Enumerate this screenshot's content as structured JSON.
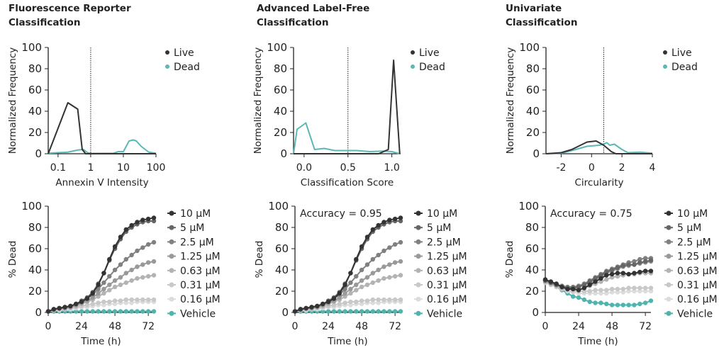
{
  "colors": {
    "live": "#333333",
    "dead": "#5bb8b4",
    "threshold": "#222222"
  },
  "chart_data": [
    {
      "type": "line",
      "panel": "top-left",
      "title": "Fluorescence Reporter Classification",
      "title_lines": [
        "Fluorescence Reporter",
        "Classification"
      ],
      "xlabel": "Annexin V Intensity",
      "ylabel": "Normalized Frequency",
      "xscale": "log",
      "xlim": [
        0.05,
        100
      ],
      "ylim": [
        0,
        100
      ],
      "xticks": [
        0.1,
        1,
        10,
        100
      ],
      "xtick_labels": [
        "0.1",
        "1",
        "10",
        "100"
      ],
      "yticks": [
        0,
        20,
        40,
        60,
        80,
        100
      ],
      "threshold": 1,
      "legend": "top-right",
      "series": [
        {
          "name": "Live",
          "color": "#333333",
          "points": [
            [
              0.05,
              0
            ],
            [
              0.2,
              48
            ],
            [
              0.4,
              42
            ],
            [
              0.55,
              4
            ],
            [
              0.7,
              0
            ],
            [
              100,
              0
            ]
          ]
        },
        {
          "name": "Dead",
          "color": "#5bb8b4",
          "points": [
            [
              0.05,
              0.5
            ],
            [
              0.2,
              1.5
            ],
            [
              0.4,
              3.5
            ],
            [
              0.6,
              4
            ],
            [
              0.8,
              1
            ],
            [
              1,
              0.3
            ],
            [
              5,
              0.5
            ],
            [
              7,
              2
            ],
            [
              10,
              2
            ],
            [
              15,
              12
            ],
            [
              20,
              13
            ],
            [
              25,
              12
            ],
            [
              35,
              7
            ],
            [
              60,
              1.5
            ],
            [
              100,
              0.5
            ]
          ]
        }
      ]
    },
    {
      "type": "line",
      "panel": "top-middle",
      "title": "Advanced Label-Free Classification",
      "title_lines": [
        "Advanced Label-Free",
        "Classification"
      ],
      "xlabel": "Classification Score",
      "ylabel": "Normalized Frequency",
      "xscale": "linear",
      "xlim": [
        -0.12,
        1.1
      ],
      "ylim": [
        0,
        100
      ],
      "xticks": [
        0,
        0.5,
        1
      ],
      "xtick_labels": [
        "0.0",
        "0.5",
        "1.0"
      ],
      "yticks": [
        0,
        20,
        40,
        60,
        80,
        100
      ],
      "threshold": 0.5,
      "legend": "top-right",
      "series": [
        {
          "name": "Live",
          "color": "#333333",
          "points": [
            [
              -0.12,
              0
            ],
            [
              0.85,
              0
            ],
            [
              0.96,
              4
            ],
            [
              1.02,
              88
            ],
            [
              1.09,
              0
            ]
          ]
        },
        {
          "name": "Dead",
          "color": "#5bb8b4",
          "points": [
            [
              -0.12,
              0
            ],
            [
              -0.08,
              23
            ],
            [
              0.02,
              29
            ],
            [
              0.12,
              4
            ],
            [
              0.23,
              5
            ],
            [
              0.35,
              3
            ],
            [
              0.6,
              3
            ],
            [
              0.75,
              2
            ],
            [
              0.9,
              2.5
            ],
            [
              1.0,
              2
            ],
            [
              1.09,
              0
            ]
          ]
        }
      ]
    },
    {
      "type": "line",
      "panel": "top-right",
      "title": "Univariate Classification",
      "title_lines": [
        "Univariate",
        "Classification"
      ],
      "xlabel": "Circularity",
      "ylabel": "Normalized Frequency",
      "xscale": "linear",
      "xlim": [
        -3,
        4
      ],
      "ylim": [
        0,
        100
      ],
      "xticks": [
        -2,
        0,
        2,
        4
      ],
      "xtick_labels": [
        "-2",
        "0",
        "2",
        "4"
      ],
      "yticks": [
        0,
        20,
        40,
        60,
        80,
        100
      ],
      "threshold": 0.8,
      "legend": "top-right",
      "series": [
        {
          "name": "Live",
          "color": "#333333",
          "points": [
            [
              -3,
              0
            ],
            [
              -2,
              1
            ],
            [
              -1.3,
              4
            ],
            [
              -0.3,
              11
            ],
            [
              0.3,
              12
            ],
            [
              0.8,
              8
            ],
            [
              1.3,
              2
            ],
            [
              1.6,
              0
            ],
            [
              4,
              0
            ]
          ]
        },
        {
          "name": "Dead",
          "color": "#5bb8b4",
          "points": [
            [
              -3,
              0
            ],
            [
              -2,
              0.5
            ],
            [
              -1.3,
              3
            ],
            [
              -0.3,
              7
            ],
            [
              0.5,
              8
            ],
            [
              0.8,
              9
            ],
            [
              1,
              10.5
            ],
            [
              1.2,
              8
            ],
            [
              1.5,
              9
            ],
            [
              2,
              4
            ],
            [
              2.4,
              1
            ],
            [
              3.2,
              1.5
            ],
            [
              4,
              0.5
            ]
          ]
        }
      ]
    },
    {
      "type": "line",
      "panel": "bottom-left",
      "xlabel": "Time (h)",
      "ylabel": "% Dead",
      "xlim": [
        0,
        76
      ],
      "ylim": [
        0,
        100
      ],
      "xticks": [
        0,
        24,
        48,
        72
      ],
      "yticks": [
        0,
        20,
        40,
        60,
        80,
        100
      ],
      "annotation": "",
      "legend": "right",
      "x": [
        0,
        4,
        8,
        12,
        16,
        20,
        24,
        28,
        32,
        36,
        40,
        44,
        48,
        52,
        56,
        60,
        64,
        68,
        72,
        76
      ],
      "series": [
        {
          "name": "10 µM",
          "color": "#333333",
          "values": [
            1,
            3,
            4,
            5,
            6,
            8,
            10,
            13,
            18,
            26,
            37,
            50,
            62,
            71,
            78,
            82,
            85,
            87,
            88,
            89
          ]
        },
        {
          "name": "5 µM",
          "color": "#666666",
          "values": [
            1,
            3,
            4,
            5,
            6,
            8,
            11,
            14,
            19,
            27,
            37,
            49,
            60,
            69,
            76,
            80,
            83,
            85,
            86,
            86
          ]
        },
        {
          "name": "2.5 µM",
          "color": "#808080",
          "values": [
            1,
            3,
            4,
            5,
            6,
            8,
            10,
            13,
            17,
            22,
            28,
            34,
            40,
            45,
            50,
            54,
            58,
            61,
            64,
            66
          ]
        },
        {
          "name": "1.25 µM",
          "color": "#999999",
          "values": [
            1,
            3,
            4,
            4,
            5,
            7,
            9,
            11,
            14,
            18,
            22,
            26,
            30,
            33,
            37,
            40,
            43,
            45,
            47,
            48
          ]
        },
        {
          "name": "0.63 µM",
          "color": "#b3b3b3",
          "values": [
            1,
            2,
            3,
            4,
            5,
            6,
            8,
            10,
            12,
            15,
            18,
            21,
            24,
            26,
            28,
            30,
            32,
            33,
            34,
            35
          ]
        },
        {
          "name": "0.31 µM",
          "color": "#c8c8c8",
          "values": [
            1,
            2,
            3,
            3,
            4,
            5,
            6,
            7,
            8,
            9,
            10,
            10,
            11,
            11,
            12,
            12,
            12,
            12,
            12,
            12
          ]
        },
        {
          "name": "0.16 µM",
          "color": "#dcdcdc",
          "values": [
            1,
            2,
            2,
            3,
            3,
            4,
            5,
            5,
            6,
            7,
            7,
            8,
            8,
            9,
            9,
            9,
            10,
            10,
            10,
            10
          ]
        },
        {
          "name": "Vehicle",
          "color": "#4fb3ae",
          "values": [
            1,
            1,
            1,
            1,
            1,
            1,
            1,
            1,
            1,
            1,
            1,
            1,
            1,
            1,
            1,
            1,
            1,
            1,
            1,
            1
          ]
        }
      ]
    },
    {
      "type": "line",
      "panel": "bottom-middle",
      "xlabel": "Time (h)",
      "ylabel": "% Dead",
      "xlim": [
        0,
        76
      ],
      "ylim": [
        0,
        100
      ],
      "xticks": [
        0,
        24,
        48,
        72
      ],
      "yticks": [
        0,
        20,
        40,
        60,
        80,
        100
      ],
      "annotation": "Accuracy = 0.95",
      "legend": "right",
      "x": [
        0,
        4,
        8,
        12,
        16,
        20,
        24,
        28,
        32,
        36,
        40,
        44,
        48,
        52,
        56,
        60,
        64,
        68,
        72,
        76
      ],
      "series": [
        {
          "name": "10 µM",
          "color": "#333333",
          "values": [
            1,
            3,
            4,
            5,
            6,
            8,
            10,
            13,
            18,
            26,
            37,
            50,
            62,
            71,
            78,
            82,
            85,
            87,
            88,
            89
          ]
        },
        {
          "name": "5 µM",
          "color": "#666666",
          "values": [
            1,
            3,
            4,
            5,
            6,
            8,
            11,
            14,
            19,
            27,
            37,
            49,
            60,
            69,
            76,
            80,
            83,
            85,
            86,
            86
          ]
        },
        {
          "name": "2.5 µM",
          "color": "#808080",
          "values": [
            1,
            3,
            4,
            5,
            6,
            8,
            10,
            13,
            17,
            22,
            28,
            34,
            40,
            45,
            50,
            54,
            58,
            61,
            64,
            66
          ]
        },
        {
          "name": "1.25 µM",
          "color": "#999999",
          "values": [
            1,
            3,
            4,
            4,
            5,
            7,
            9,
            11,
            14,
            18,
            22,
            26,
            30,
            33,
            37,
            40,
            43,
            45,
            47,
            48
          ]
        },
        {
          "name": "0.63 µM",
          "color": "#b3b3b3",
          "values": [
            1,
            2,
            3,
            4,
            5,
            6,
            8,
            10,
            12,
            15,
            18,
            21,
            24,
            26,
            28,
            30,
            32,
            33,
            34,
            35
          ]
        },
        {
          "name": "0.31 µM",
          "color": "#c8c8c8",
          "values": [
            1,
            2,
            3,
            3,
            4,
            5,
            6,
            7,
            8,
            9,
            10,
            10,
            11,
            11,
            12,
            12,
            12,
            12,
            12,
            12
          ]
        },
        {
          "name": "0.16 µM",
          "color": "#dcdcdc",
          "values": [
            1,
            2,
            2,
            3,
            3,
            4,
            5,
            5,
            6,
            7,
            7,
            8,
            8,
            9,
            9,
            9,
            10,
            10,
            10,
            10
          ]
        },
        {
          "name": "Vehicle",
          "color": "#4fb3ae",
          "values": [
            1,
            1,
            1,
            1,
            1,
            1,
            1,
            1,
            1,
            1,
            1,
            1,
            1,
            1,
            1,
            1,
            1,
            1,
            1,
            1
          ]
        }
      ]
    },
    {
      "type": "line",
      "panel": "bottom-right",
      "xlabel": "Time (h)",
      "ylabel": "% Dead",
      "xlim": [
        0,
        76
      ],
      "ylim": [
        0,
        100
      ],
      "xticks": [
        0,
        24,
        48,
        72
      ],
      "yticks": [
        0,
        20,
        40,
        60,
        80,
        100
      ],
      "annotation": "Accuracy = 0.75",
      "legend": "right",
      "x": [
        0,
        4,
        8,
        12,
        16,
        20,
        24,
        28,
        32,
        36,
        40,
        44,
        48,
        52,
        56,
        60,
        64,
        68,
        72,
        76
      ],
      "series": [
        {
          "name": "10 µM",
          "color": "#333333",
          "values": [
            31,
            29,
            27,
            24,
            22,
            22,
            21,
            23,
            26,
            29,
            32,
            35,
            36,
            37,
            37,
            36,
            37,
            38,
            39,
            39
          ]
        },
        {
          "name": "5 µM",
          "color": "#666666",
          "values": [
            30,
            28,
            26,
            24,
            23,
            23,
            24,
            26,
            29,
            32,
            35,
            38,
            40,
            42,
            44,
            45,
            45,
            47,
            48,
            49
          ]
        },
        {
          "name": "2.5 µM",
          "color": "#808080",
          "values": [
            30,
            28,
            26,
            25,
            24,
            24,
            25,
            27,
            30,
            33,
            36,
            39,
            41,
            43,
            45,
            47,
            48,
            50,
            51,
            51
          ]
        },
        {
          "name": "1.25 µM",
          "color": "#999999",
          "values": [
            30,
            28,
            26,
            24,
            23,
            23,
            24,
            26,
            28,
            31,
            34,
            37,
            39,
            41,
            43,
            44,
            45,
            46,
            47,
            48
          ]
        },
        {
          "name": "0.63 µM",
          "color": "#b3b3b3",
          "values": [
            29,
            27,
            25,
            23,
            22,
            22,
            22,
            23,
            25,
            27,
            29,
            31,
            33,
            34,
            35,
            36,
            36,
            37,
            37,
            37
          ]
        },
        {
          "name": "0.31 µM",
          "color": "#c8c8c8",
          "values": [
            28,
            26,
            24,
            22,
            21,
            20,
            20,
            20,
            20,
            21,
            21,
            21,
            22,
            22,
            22,
            23,
            23,
            23,
            23,
            23
          ]
        },
        {
          "name": "0.16 µM",
          "color": "#dcdcdc",
          "values": [
            28,
            26,
            24,
            22,
            20,
            19,
            18,
            18,
            18,
            18,
            18,
            18,
            19,
            19,
            19,
            20,
            20,
            20,
            20,
            20
          ]
        },
        {
          "name": "Vehicle",
          "color": "#4fb3ae",
          "values": [
            30,
            27,
            24,
            21,
            18,
            15,
            14,
            12,
            10,
            9,
            9,
            8,
            7,
            7,
            7,
            7,
            7,
            8,
            9,
            11
          ]
        }
      ]
    }
  ]
}
